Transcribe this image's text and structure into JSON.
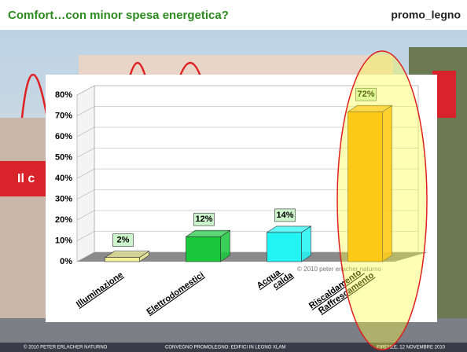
{
  "header": {
    "title": "Comfort…con minor spesa energetica?",
    "logo": "promo_legno",
    "background_sign": "Il c"
  },
  "chart_data": {
    "type": "bar3d",
    "categories": [
      "Illuminazione",
      "Elettrodomestici",
      "Acqua calda",
      "Riscaldamento Raffrescamento"
    ],
    "values": [
      2,
      12,
      14,
      72
    ],
    "value_labels": [
      "2%",
      "12%",
      "14%",
      "72%"
    ],
    "colors": [
      "#f3f09a",
      "#18c83a",
      "#22f4f4",
      "#ffa800"
    ],
    "ylim": [
      0,
      80
    ],
    "yticks": [
      {
        "value": 0,
        "label": "0%"
      },
      {
        "value": 10,
        "label": "10%"
      },
      {
        "value": 20,
        "label": "20%"
      },
      {
        "value": 30,
        "label": "30%"
      },
      {
        "value": 40,
        "label": "40%"
      },
      {
        "value": 50,
        "label": "50%"
      },
      {
        "value": 60,
        "label": "60%"
      },
      {
        "value": 70,
        "label": "70%"
      },
      {
        "value": 80,
        "label": "80%"
      }
    ],
    "grid": true,
    "watermark": "© 2010 peter erlacher naturno"
  },
  "footer": {
    "left": "© 2010 PETER ERLACHER NATURNO",
    "center": "CONVEGNO PROMOLEGNO: EDIFICI IN LEGNO XLAM",
    "right": "FIRENZE, 12 NOVEMBRE 2010"
  }
}
